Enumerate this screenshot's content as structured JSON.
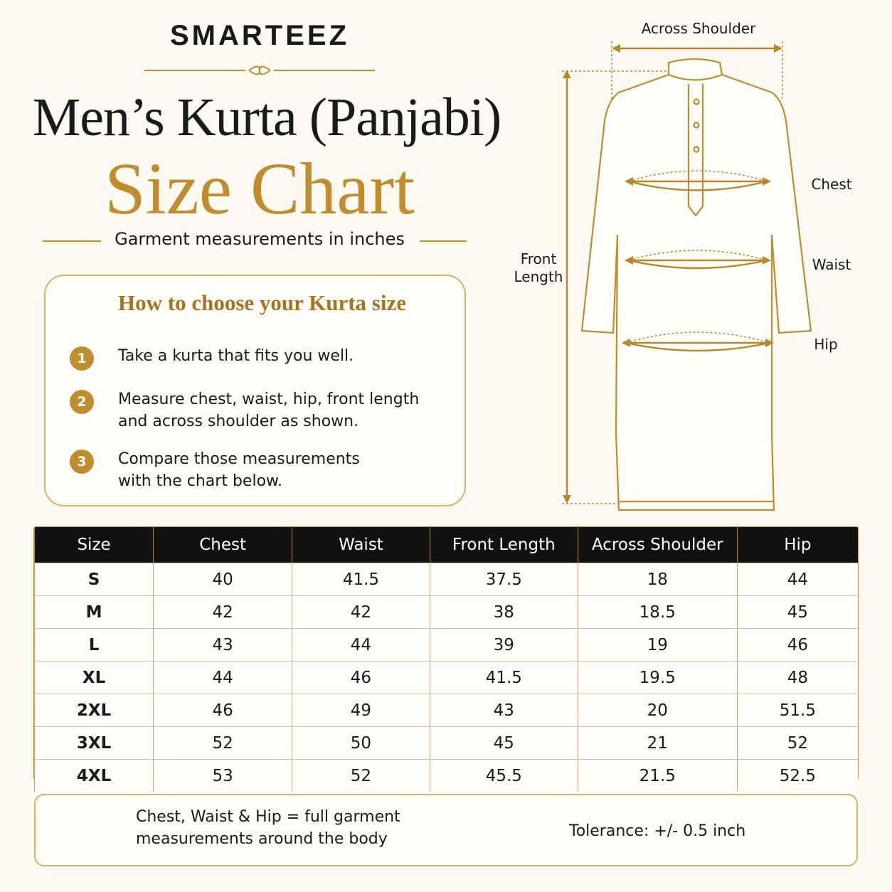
{
  "header": {
    "brand": "SMARTEEZ",
    "title": "Men’s Kurta (Panjabi)",
    "subtitle": "Size Chart",
    "caption": "Garment measurements in inches"
  },
  "guide": {
    "title": "How to choose your Kurta size",
    "steps": [
      {
        "number": 1,
        "lines": [
          "Take a kurta that fits you well."
        ]
      },
      {
        "number": 2,
        "lines": [
          "Measure chest, waist, hip, front length",
          "and across shoulder as shown."
        ]
      },
      {
        "number": 3,
        "lines": [
          "Compare those measurements",
          "with the chart below."
        ]
      }
    ]
  },
  "diagram": {
    "across_shoulder": "Across Shoulder",
    "chest": "Chest",
    "waist": "Waist",
    "hip": "Hip",
    "front_length": [
      "Front",
      "Length"
    ]
  },
  "table": {
    "headers": [
      "Size",
      "Chest",
      "Waist",
      "Front Length",
      "Across Shoulder",
      "Hip"
    ],
    "rows": [
      [
        "S",
        40,
        41.5,
        37.5,
        18,
        44
      ],
      [
        "M",
        42,
        42,
        38,
        18.5,
        45
      ],
      [
        "L",
        43,
        44,
        39,
        19,
        46
      ],
      [
        "XL",
        44,
        46,
        41.5,
        19.5,
        48
      ],
      [
        "2XL",
        46,
        49,
        43,
        20,
        51.5
      ],
      [
        "3XL",
        52,
        50,
        45,
        21,
        52
      ],
      [
        "4XL",
        53,
        52,
        45.5,
        21.5,
        52.5
      ]
    ]
  },
  "notes": {
    "measurement": [
      "Chest, Waist & Hip = full garment",
      "measurements around the body"
    ],
    "tolerance": "Tolerance: +/- 0.5 inch"
  }
}
